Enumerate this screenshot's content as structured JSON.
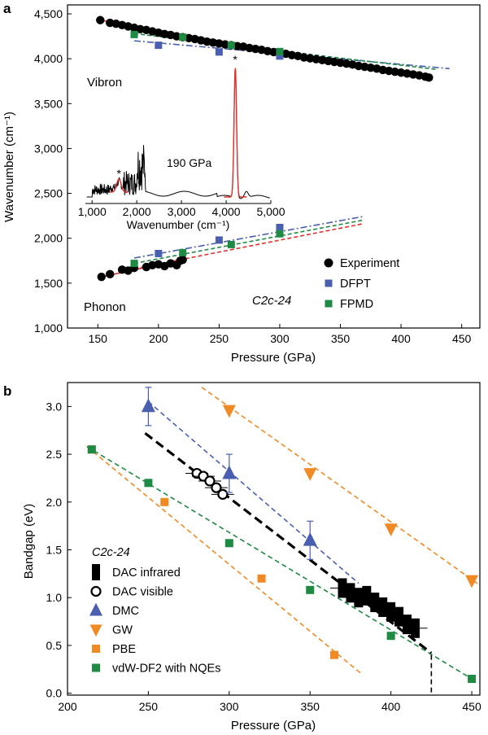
{
  "figure": {
    "colors": {
      "experiment": "#000000",
      "fit": "#e0312b",
      "dfpt": "#4a5fb0",
      "fpmd": "#1e8a44",
      "dmc": "#4a5fb0",
      "gw": "#f08a25",
      "pbe": "#f08a25",
      "vdw": "#1e8a44"
    }
  },
  "chart_data": [
    {
      "panel": "a",
      "type": "scatter",
      "xlabel": "Pressure (GPa)",
      "ylabel": "Wavenumber (cm⁻¹)",
      "xlim": [
        125,
        465
      ],
      "ylim": [
        1000,
        4600
      ],
      "xticks": [
        150,
        200,
        250,
        300,
        350,
        400,
        450
      ],
      "xtick_labels": [
        "150",
        "200",
        "250",
        "300",
        "350",
        "400",
        "450"
      ],
      "yticks": [
        1000,
        1500,
        2000,
        2500,
        3000,
        3500,
        4000,
        4500
      ],
      "ytick_labels": [
        "1,000",
        "1,500",
        "2,000",
        "2,500",
        "3,000",
        "3,500",
        "4,000",
        "4,500"
      ],
      "annotations": {
        "vibron": "Vibron",
        "phonon": "Phonon",
        "structure": "C2c-24"
      },
      "legend": {
        "placement": "bottom-right",
        "entries": [
          "Experiment",
          "DFPT",
          "FPMD"
        ]
      },
      "series": [
        {
          "name": "Experiment",
          "mode": "vibron",
          "x": [
            152,
            160,
            165,
            170,
            175,
            180,
            185,
            190,
            195,
            200,
            205,
            210,
            215,
            220,
            225,
            230,
            235,
            240,
            245,
            250,
            255,
            260,
            265,
            270,
            275,
            280,
            285,
            290,
            295,
            300,
            305,
            310,
            315,
            320,
            325,
            330,
            335,
            340,
            345,
            350,
            355,
            360,
            365,
            370,
            375,
            380,
            385,
            390,
            395,
            400,
            405,
            410,
            415,
            420,
            423
          ],
          "y": [
            4430,
            4400,
            4390,
            4375,
            4360,
            4345,
            4330,
            4320,
            4305,
            4290,
            4275,
            4265,
            4250,
            4240,
            4230,
            4220,
            4205,
            4190,
            4180,
            4170,
            4160,
            4150,
            4140,
            4135,
            4120,
            4110,
            4100,
            4085,
            4075,
            4065,
            4055,
            4040,
            4030,
            4015,
            4005,
            3995,
            3985,
            3975,
            3965,
            3955,
            3945,
            3935,
            3920,
            3910,
            3900,
            3890,
            3875,
            3865,
            3855,
            3845,
            3835,
            3825,
            3815,
            3800,
            3790
          ]
        },
        {
          "name": "Experiment",
          "mode": "phonon",
          "x": [
            153,
            160,
            170,
            175,
            180,
            190,
            195,
            200,
            205,
            210,
            215,
            218,
            220
          ],
          "y": [
            1570,
            1600,
            1650,
            1640,
            1670,
            1680,
            1700,
            1710,
            1690,
            1720,
            1700,
            1750,
            1760
          ]
        },
        {
          "name": "DFPT",
          "mode": "vibron",
          "x": [
            200,
            250,
            300
          ],
          "y": [
            4150,
            4075,
            4030
          ]
        },
        {
          "name": "DFPT",
          "mode": "phonon",
          "x": [
            200,
            250,
            300
          ],
          "y": [
            1830,
            1980,
            2120
          ]
        },
        {
          "name": "FPMD",
          "mode": "vibron",
          "x": [
            180,
            220,
            260,
            300
          ],
          "y": [
            4270,
            4240,
            4150,
            4080
          ]
        },
        {
          "name": "FPMD",
          "mode": "phonon",
          "x": [
            180,
            220,
            260,
            300
          ],
          "y": [
            1720,
            1840,
            1930,
            2050
          ]
        }
      ],
      "inset": {
        "label": "190 GPa",
        "xlabel": "Wavenumber (cm⁻¹)",
        "xticks": [
          1000,
          2000,
          3000,
          4000,
          5000
        ],
        "xtick_labels": [
          "1,000",
          "2,000",
          "3,000",
          "4,000",
          "5,000"
        ],
        "xlim": [
          850,
          5000
        ],
        "peaks": [
          1600,
          4200
        ]
      }
    },
    {
      "panel": "b",
      "type": "scatter",
      "xlabel": "Pressure (GPa)",
      "ylabel": "Bandgap (eV)",
      "xlim": [
        200,
        455
      ],
      "ylim": [
        -0.02,
        3.25
      ],
      "xticks": [
        200,
        250,
        300,
        350,
        400,
        450
      ],
      "xtick_labels": [
        "200",
        "250",
        "300",
        "350",
        "400",
        "450"
      ],
      "yticks": [
        0.0,
        0.5,
        1.0,
        1.5,
        2.0,
        2.5,
        3.0
      ],
      "ytick_labels": [
        "0.0",
        "0.5",
        "1.0",
        "1.5",
        "2.0",
        "2.5",
        "3.0"
      ],
      "legend": {
        "title": "C2c-24",
        "placement": "bottom-left",
        "entries": [
          "DAC infrared",
          "DAC visible",
          "DMC",
          "GW",
          "PBE",
          "vdW-DF2 with NQEs"
        ]
      },
      "series": [
        {
          "name": "DAC infrared",
          "x": [
            370,
            375,
            380,
            385,
            390,
            395,
            400,
            405,
            410,
            415
          ],
          "y": [
            1.1,
            1.05,
            1.0,
            1.02,
            0.95,
            0.9,
            0.85,
            0.8,
            0.72,
            0.68
          ]
        },
        {
          "name": "DAC visible",
          "x": [
            280,
            284,
            288,
            292,
            296
          ],
          "y": [
            2.3,
            2.27,
            2.22,
            2.15,
            2.08
          ]
        },
        {
          "name": "DMC",
          "x": [
            250,
            300,
            350
          ],
          "y": [
            3.0,
            2.3,
            1.6
          ],
          "yerr": [
            0.2,
            0.2,
            0.2
          ]
        },
        {
          "name": "GW",
          "x": [
            300,
            350,
            400,
            450
          ],
          "y": [
            2.96,
            2.3,
            1.72,
            1.18
          ]
        },
        {
          "name": "PBE",
          "x": [
            215,
            260,
            320,
            365
          ],
          "y": [
            2.55,
            2.0,
            1.2,
            0.4
          ]
        },
        {
          "name": "vdW-DF2 with NQEs",
          "x": [
            215,
            250,
            300,
            350,
            400,
            450
          ],
          "y": [
            2.55,
            2.2,
            1.57,
            1.08,
            0.6,
            0.15
          ]
        }
      ]
    }
  ]
}
